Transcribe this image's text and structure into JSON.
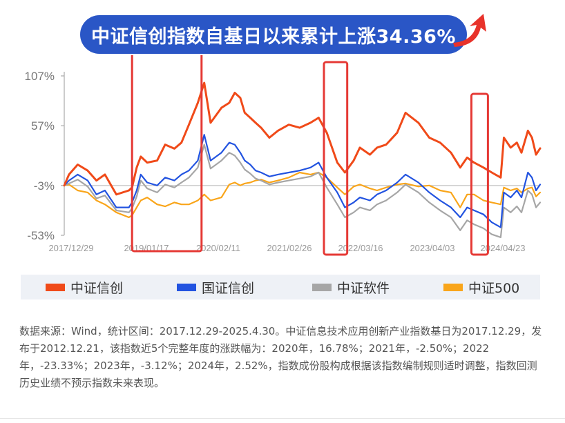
{
  "banner": {
    "title": "中证信创指数自基日以来累计上涨34.36%"
  },
  "chart_data": {
    "type": "line",
    "yticks": [
      "107%",
      "57%",
      "-3%",
      "-53%"
    ],
    "ytick_values": [
      107,
      57,
      -3,
      -53
    ],
    "xticks": [
      "2017/12/29",
      "2019/01/17",
      "2020/02/11",
      "2021/02/26",
      "2022/03/16",
      "2023/04/03",
      "2024/04/23"
    ],
    "x_start": "2017-12-29",
    "x_end": "2025-04-30",
    "ylim": [
      -53,
      107
    ],
    "reference_line": -3,
    "highlight_ranges": [
      {
        "from": "2019-01-15",
        "to": "2020-02-10"
      },
      {
        "from": "2021-12-30",
        "to": "2022-05-10"
      },
      {
        "from": "2024-04-08",
        "to": "2024-07-10"
      }
    ],
    "series": [
      {
        "name": "中证信创",
        "color": "#f04a19",
        "points": [
          [
            "2017-12-29",
            -3
          ],
          [
            "2018-01-25",
            8
          ],
          [
            "2018-03-15",
            18
          ],
          [
            "2018-05-10",
            12
          ],
          [
            "2018-06-28",
            2
          ],
          [
            "2018-08-15",
            8
          ],
          [
            "2018-10-18",
            -12
          ],
          [
            "2018-12-28",
            -8
          ],
          [
            "2019-01-15",
            -5
          ],
          [
            "2019-02-10",
            15
          ],
          [
            "2019-03-05",
            26
          ],
          [
            "2019-04-10",
            20
          ],
          [
            "2019-06-05",
            22
          ],
          [
            "2019-07-20",
            38
          ],
          [
            "2019-09-10",
            34
          ],
          [
            "2019-10-20",
            40
          ],
          [
            "2019-12-01",
            58
          ],
          [
            "2020-01-20",
            80
          ],
          [
            "2020-02-25",
            100
          ],
          [
            "2020-04-01",
            60
          ],
          [
            "2020-06-01",
            75
          ],
          [
            "2020-07-15",
            80
          ],
          [
            "2020-08-15",
            90
          ],
          [
            "2020-09-15",
            85
          ],
          [
            "2020-10-10",
            70
          ],
          [
            "2020-11-10",
            65
          ],
          [
            "2020-12-10",
            60
          ],
          [
            "2021-01-10",
            55
          ],
          [
            "2021-02-26",
            45
          ],
          [
            "2021-04-15",
            52
          ],
          [
            "2021-06-15",
            58
          ],
          [
            "2021-08-15",
            55
          ],
          [
            "2021-10-15",
            60
          ],
          [
            "2021-11-30",
            65
          ],
          [
            "2022-01-15",
            50
          ],
          [
            "2022-03-15",
            20
          ],
          [
            "2022-04-27",
            10
          ],
          [
            "2022-06-15",
            22
          ],
          [
            "2022-07-20",
            35
          ],
          [
            "2022-09-15",
            28
          ],
          [
            "2022-10-25",
            35
          ],
          [
            "2022-12-15",
            38
          ],
          [
            "2023-02-15",
            50
          ],
          [
            "2023-04-03",
            70
          ],
          [
            "2023-06-15",
            60
          ],
          [
            "2023-08-15",
            45
          ],
          [
            "2023-10-15",
            40
          ],
          [
            "2023-12-15",
            30
          ],
          [
            "2024-02-05",
            15
          ],
          [
            "2024-03-15",
            25
          ],
          [
            "2024-04-23",
            20
          ],
          [
            "2024-06-15",
            15
          ],
          [
            "2024-08-01",
            10
          ],
          [
            "2024-09-20",
            5
          ],
          [
            "2024-10-08",
            45
          ],
          [
            "2024-11-15",
            35
          ],
          [
            "2024-12-20",
            40
          ],
          [
            "2025-01-15",
            30
          ],
          [
            "2025-02-20",
            52
          ],
          [
            "2025-03-15",
            45
          ],
          [
            "2025-04-07",
            28
          ],
          [
            "2025-04-30",
            34.36
          ]
        ]
      },
      {
        "name": "国证信创",
        "color": "#2253e0",
        "points": [
          [
            "2017-12-29",
            -3
          ],
          [
            "2018-01-25",
            2
          ],
          [
            "2018-03-15",
            8
          ],
          [
            "2018-05-10",
            2
          ],
          [
            "2018-06-28",
            -12
          ],
          [
            "2018-08-15",
            -8
          ],
          [
            "2018-10-18",
            -25
          ],
          [
            "2018-12-28",
            -25
          ],
          [
            "2019-01-15",
            -20
          ],
          [
            "2019-02-10",
            -8
          ],
          [
            "2019-03-05",
            8
          ],
          [
            "2019-04-10",
            0
          ],
          [
            "2019-06-05",
            -3
          ],
          [
            "2019-07-20",
            5
          ],
          [
            "2019-09-10",
            2
          ],
          [
            "2019-10-20",
            8
          ],
          [
            "2019-12-01",
            12
          ],
          [
            "2020-01-20",
            22
          ],
          [
            "2020-02-25",
            48
          ],
          [
            "2020-04-01",
            22
          ],
          [
            "2020-06-01",
            30
          ],
          [
            "2020-07-15",
            40
          ],
          [
            "2020-08-15",
            38
          ],
          [
            "2020-09-15",
            30
          ],
          [
            "2020-10-10",
            22
          ],
          [
            "2020-11-10",
            18
          ],
          [
            "2020-12-10",
            12
          ],
          [
            "2021-01-10",
            10
          ],
          [
            "2021-02-26",
            6
          ],
          [
            "2021-04-15",
            8
          ],
          [
            "2021-06-15",
            10
          ],
          [
            "2021-08-15",
            12
          ],
          [
            "2021-10-15",
            15
          ],
          [
            "2021-11-30",
            20
          ],
          [
            "2022-01-15",
            5
          ],
          [
            "2022-03-15",
            -10
          ],
          [
            "2022-04-27",
            -25
          ],
          [
            "2022-06-15",
            -20
          ],
          [
            "2022-07-20",
            -15
          ],
          [
            "2022-09-15",
            -18
          ],
          [
            "2022-10-25",
            -12
          ],
          [
            "2022-12-15",
            -8
          ],
          [
            "2023-02-15",
            0
          ],
          [
            "2023-04-03",
            8
          ],
          [
            "2023-06-15",
            0
          ],
          [
            "2023-08-15",
            -10
          ],
          [
            "2023-10-15",
            -18
          ],
          [
            "2023-12-15",
            -25
          ],
          [
            "2024-02-05",
            -35
          ],
          [
            "2024-03-15",
            -25
          ],
          [
            "2024-04-23",
            -28
          ],
          [
            "2024-06-15",
            -32
          ],
          [
            "2024-08-01",
            -40
          ],
          [
            "2024-09-20",
            -45
          ],
          [
            "2024-10-08",
            -10
          ],
          [
            "2024-11-15",
            -15
          ],
          [
            "2024-12-20",
            -8
          ],
          [
            "2025-01-15",
            -15
          ],
          [
            "2025-02-20",
            10
          ],
          [
            "2025-03-15",
            5
          ],
          [
            "2025-04-07",
            -8
          ],
          [
            "2025-04-30",
            -2
          ]
        ]
      },
      {
        "name": "中证软件",
        "color": "#a6a6a6",
        "points": [
          [
            "2017-12-29",
            -3
          ],
          [
            "2018-01-25",
            -1
          ],
          [
            "2018-03-15",
            3
          ],
          [
            "2018-05-10",
            -4
          ],
          [
            "2018-06-28",
            -16
          ],
          [
            "2018-08-15",
            -13
          ],
          [
            "2018-10-18",
            -28
          ],
          [
            "2018-12-28",
            -30
          ],
          [
            "2019-01-15",
            -26
          ],
          [
            "2019-02-10",
            -14
          ],
          [
            "2019-03-05",
            2
          ],
          [
            "2019-04-10",
            -6
          ],
          [
            "2019-06-05",
            -10
          ],
          [
            "2019-07-20",
            -2
          ],
          [
            "2019-09-10",
            -5
          ],
          [
            "2019-10-20",
            0
          ],
          [
            "2019-12-01",
            5
          ],
          [
            "2020-01-20",
            15
          ],
          [
            "2020-02-25",
            38
          ],
          [
            "2020-04-01",
            14
          ],
          [
            "2020-06-01",
            22
          ],
          [
            "2020-07-15",
            30
          ],
          [
            "2020-08-15",
            27
          ],
          [
            "2020-09-15",
            20
          ],
          [
            "2020-10-10",
            13
          ],
          [
            "2020-11-10",
            9
          ],
          [
            "2020-12-10",
            4
          ],
          [
            "2021-01-10",
            2
          ],
          [
            "2021-02-26",
            -2
          ],
          [
            "2021-04-15",
            0
          ],
          [
            "2021-06-15",
            2
          ],
          [
            "2021-08-15",
            4
          ],
          [
            "2021-10-15",
            6
          ],
          [
            "2021-11-30",
            10
          ],
          [
            "2022-01-15",
            -5
          ],
          [
            "2022-03-15",
            -22
          ],
          [
            "2022-04-27",
            -35
          ],
          [
            "2022-06-15",
            -30
          ],
          [
            "2022-07-20",
            -25
          ],
          [
            "2022-09-15",
            -28
          ],
          [
            "2022-10-25",
            -22
          ],
          [
            "2022-12-15",
            -18
          ],
          [
            "2023-02-15",
            -10
          ],
          [
            "2023-04-03",
            -2
          ],
          [
            "2023-06-15",
            -10
          ],
          [
            "2023-08-15",
            -20
          ],
          [
            "2023-10-15",
            -28
          ],
          [
            "2023-12-15",
            -35
          ],
          [
            "2024-02-05",
            -48
          ],
          [
            "2024-03-15",
            -38
          ],
          [
            "2024-04-23",
            -42
          ],
          [
            "2024-06-15",
            -46
          ],
          [
            "2024-08-01",
            -52
          ],
          [
            "2024-09-20",
            -55
          ],
          [
            "2024-10-08",
            -25
          ],
          [
            "2024-11-15",
            -30
          ],
          [
            "2024-12-20",
            -24
          ],
          [
            "2025-01-15",
            -30
          ],
          [
            "2025-02-20",
            -8
          ],
          [
            "2025-03-15",
            -12
          ],
          [
            "2025-04-07",
            -25
          ],
          [
            "2025-04-30",
            -20
          ]
        ]
      },
      {
        "name": "中证500",
        "color": "#f9a51a",
        "points": [
          [
            "2017-12-29",
            -3
          ],
          [
            "2018-01-25",
            -2
          ],
          [
            "2018-03-15",
            -8
          ],
          [
            "2018-05-10",
            -10
          ],
          [
            "2018-06-28",
            -18
          ],
          [
            "2018-08-15",
            -22
          ],
          [
            "2018-10-18",
            -30
          ],
          [
            "2018-12-28",
            -35
          ],
          [
            "2019-01-15",
            -33
          ],
          [
            "2019-02-10",
            -25
          ],
          [
            "2019-03-05",
            -18
          ],
          [
            "2019-04-10",
            -15
          ],
          [
            "2019-06-05",
            -22
          ],
          [
            "2019-07-20",
            -24
          ],
          [
            "2019-09-10",
            -20
          ],
          [
            "2019-10-20",
            -22
          ],
          [
            "2019-12-01",
            -22
          ],
          [
            "2020-01-20",
            -18
          ],
          [
            "2020-02-25",
            -12
          ],
          [
            "2020-04-01",
            -18
          ],
          [
            "2020-06-01",
            -15
          ],
          [
            "2020-07-15",
            -2
          ],
          [
            "2020-08-15",
            0
          ],
          [
            "2020-09-15",
            -3
          ],
          [
            "2020-10-10",
            -1
          ],
          [
            "2020-11-10",
            0
          ],
          [
            "2020-12-10",
            2
          ],
          [
            "2021-01-10",
            3
          ],
          [
            "2021-02-26",
            0
          ],
          [
            "2021-04-15",
            2
          ],
          [
            "2021-06-15",
            5
          ],
          [
            "2021-08-15",
            10
          ],
          [
            "2021-10-15",
            8
          ],
          [
            "2021-11-30",
            10
          ],
          [
            "2022-01-15",
            5
          ],
          [
            "2022-03-15",
            -5
          ],
          [
            "2022-04-27",
            -12
          ],
          [
            "2022-06-15",
            -4
          ],
          [
            "2022-07-20",
            -2
          ],
          [
            "2022-09-15",
            -6
          ],
          [
            "2022-10-25",
            -8
          ],
          [
            "2022-12-15",
            -5
          ],
          [
            "2023-02-15",
            -2
          ],
          [
            "2023-04-03",
            -1
          ],
          [
            "2023-06-15",
            -4
          ],
          [
            "2023-08-15",
            -3
          ],
          [
            "2023-10-15",
            -8
          ],
          [
            "2023-12-15",
            -10
          ],
          [
            "2024-02-05",
            -25
          ],
          [
            "2024-03-15",
            -12
          ],
          [
            "2024-04-23",
            -12
          ],
          [
            "2024-06-15",
            -18
          ],
          [
            "2024-08-01",
            -20
          ],
          [
            "2024-09-20",
            -22
          ],
          [
            "2024-10-08",
            -5
          ],
          [
            "2024-11-15",
            -8
          ],
          [
            "2024-12-20",
            -6
          ],
          [
            "2025-01-15",
            -10
          ],
          [
            "2025-02-20",
            -6
          ],
          [
            "2025-03-15",
            -5
          ],
          [
            "2025-04-07",
            -14
          ],
          [
            "2025-04-30",
            -10
          ]
        ]
      }
    ]
  },
  "legend": [
    {
      "label": "中证信创",
      "color": "#f04a19"
    },
    {
      "label": "国证信创",
      "color": "#2253e0"
    },
    {
      "label": "中证软件",
      "color": "#a6a6a6"
    },
    {
      "label": "中证500",
      "color": "#f9a51a"
    }
  ],
  "note": "数据来源：Wind，统计区间：2017.12.29-2025.4.30。中证信息技术应用创新产业指数基日为2017.12.29，发布于2012.12.21，该指数近5个完整年度的涨跌幅为：2020年，16.78%；2021年，-2.50%；2022年，-23.33%；2023年，-3.12%；2024年，2.52%，指数成份股构成根据该指数编制规则适时调整，指数回测历史业绩不预示指数未来表现。"
}
